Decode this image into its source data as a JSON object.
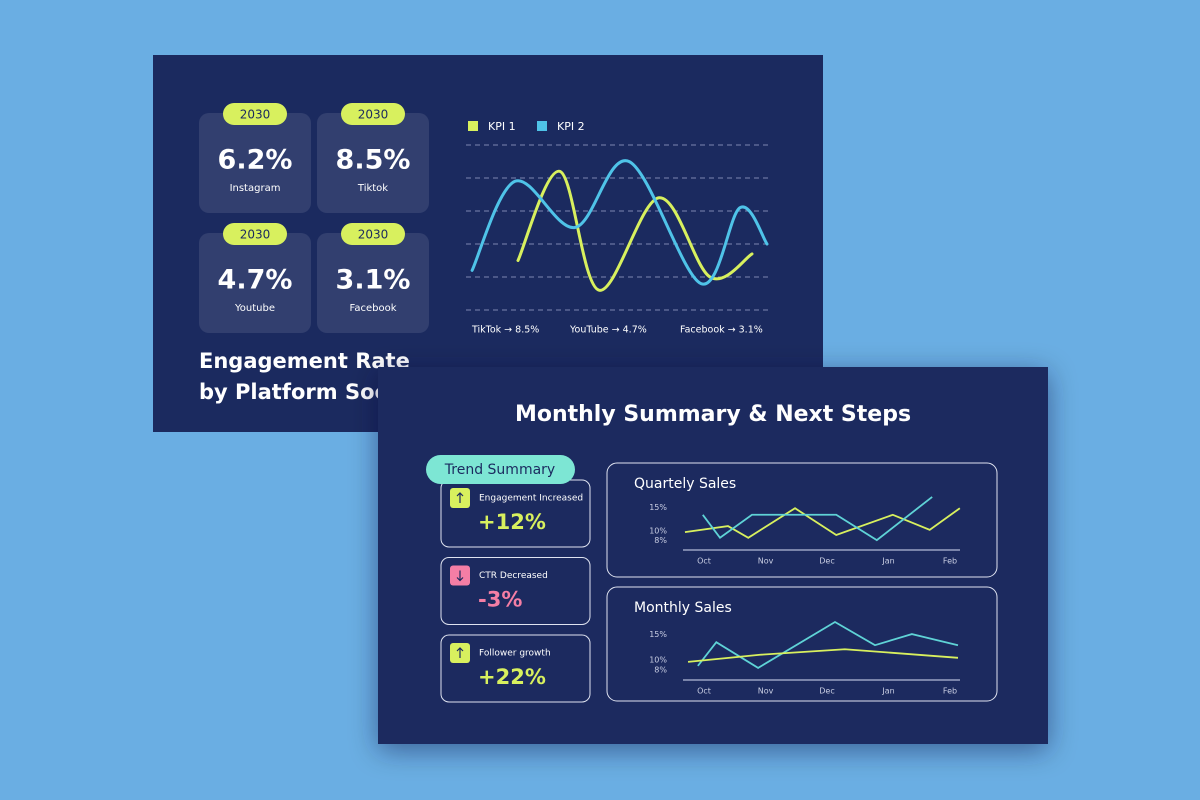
{
  "slide1": {
    "title_lines": [
      "Engagement Rate",
      "by Platform Social"
    ],
    "stats": [
      {
        "year": "2030",
        "value": "6.2%",
        "label": "Instagram"
      },
      {
        "year": "2030",
        "value": "8.5%",
        "label": "Tiktok"
      },
      {
        "year": "2030",
        "value": "4.7%",
        "label": "Youtube"
      },
      {
        "year": "2030",
        "value": "3.1%",
        "label": "Facebook"
      }
    ],
    "kpi_chart": {
      "type": "line",
      "smooth": true,
      "grid": true,
      "xlim": [
        0,
        10
      ],
      "ylim": [
        0,
        5
      ],
      "yticks": [
        0,
        1,
        2,
        3,
        4,
        5
      ],
      "series": [
        {
          "name": "KPI 1",
          "color": "#d8f05e",
          "x": [
            1.6,
            3,
            4.3,
            6.3,
            8,
            9.4
          ],
          "values": [
            1.5,
            4.2,
            0.6,
            3.4,
            1.0,
            1.7
          ]
        },
        {
          "name": "KPI 2",
          "color": "#4fc3e8",
          "x": [
            0.07,
            1.5,
            3.5,
            5.3,
            7.7,
            9,
            9.9
          ],
          "values": [
            1.2,
            3.9,
            2.5,
            4.5,
            0.8,
            3.1,
            2.0
          ]
        }
      ],
      "footnotes": [
        "TikTok → 8.5%",
        "YouTube → 4.7%",
        "Facebook → 3.1%"
      ]
    }
  },
  "slide2": {
    "title": "Monthly Summary & Next Steps",
    "badge": "Trend Summary",
    "items": [
      {
        "label": "Engagement Increased",
        "value": "+12%",
        "direction": "up",
        "color": "#d8f05e"
      },
      {
        "label": "CTR Decreased",
        "value": "-3%",
        "direction": "down",
        "color": "#f47ea5"
      },
      {
        "label": "Follower growth",
        "value": "+22%",
        "direction": "up",
        "color": "#d8f05e"
      }
    ],
    "charts": [
      {
        "type": "line",
        "title": "Quartely Sales",
        "xlim": [
          -0.35,
          4.2
        ],
        "ylim": [
          6,
          17.5
        ],
        "xticks": [
          {
            "value": 0,
            "label": "Oct"
          },
          {
            "value": 1,
            "label": "Nov"
          },
          {
            "value": 2,
            "label": "Dec"
          },
          {
            "value": 3,
            "label": "Jan"
          },
          {
            "value": 4,
            "label": "Feb"
          }
        ],
        "yticks": [
          {
            "value": 15,
            "label": "15%"
          },
          {
            "value": 10,
            "label": "10%"
          },
          {
            "value": 8,
            "label": "8%"
          }
        ],
        "series": [
          {
            "color": "#d8f05e",
            "x": [
              -0.31,
              0.39,
              0.72,
              1.48,
              2.15,
              3.07,
              3.67,
              4.16
            ],
            "values": [
              9.8,
              11.1,
              8.6,
              14.9,
              9.2,
              13.5,
              10.3,
              14.9
            ]
          },
          {
            "color": "#5fd3d6",
            "x": [
              -0.02,
              0.26,
              0.78,
              2.15,
              2.81,
              3.71
            ],
            "values": [
              13.5,
              8.6,
              13.5,
              13.5,
              8.1,
              17.3
            ]
          }
        ]
      },
      {
        "type": "line",
        "title": "Monthly Sales",
        "xlim": [
          -0.35,
          4.2
        ],
        "ylim": [
          6,
          17.5
        ],
        "xticks": [
          {
            "value": 0,
            "label": "Oct"
          },
          {
            "value": 1,
            "label": "Nov"
          },
          {
            "value": 2,
            "label": "Dec"
          },
          {
            "value": 3,
            "label": "Jan"
          },
          {
            "value": 4,
            "label": "Feb"
          }
        ],
        "yticks": [
          {
            "value": 15,
            "label": "15%"
          },
          {
            "value": 10,
            "label": "10%"
          },
          {
            "value": 8,
            "label": "8%"
          }
        ],
        "series": [
          {
            "color": "#5fd3d6",
            "x": [
              -0.1,
              0.2,
              0.88,
              2.13,
              2.78,
              3.38,
              4.13
            ],
            "values": [
              8.8,
              13.5,
              8.4,
              17.5,
              12.9,
              15.1,
              12.9
            ]
          },
          {
            "color": "#d8f05e",
            "x": [
              -0.26,
              0.91,
              2.29,
              4.13
            ],
            "values": [
              9.6,
              11.0,
              12.1,
              10.4
            ]
          }
        ]
      }
    ]
  }
}
